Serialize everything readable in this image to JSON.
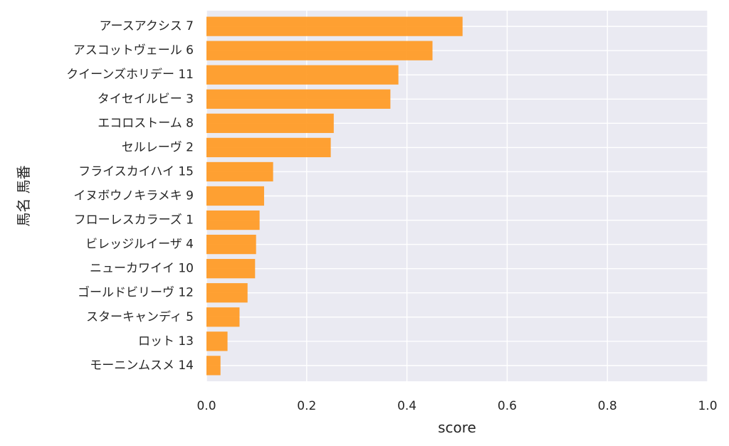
{
  "chart_data": {
    "type": "bar",
    "orientation": "horizontal",
    "xlabel": "score",
    "ylabel": "馬名 馬番",
    "xlim": [
      0.0,
      1.0
    ],
    "xticks": [
      "0.0",
      "0.2",
      "0.4",
      "0.6",
      "0.8",
      "1.0"
    ],
    "grid": true,
    "bar_color": "#ff9922",
    "background_color": "#eaeaf2",
    "categories": [
      "アースアクシス 7",
      "アスコットヴェール 6",
      "クイーンズホリデー 11",
      "タイセイルビー 3",
      "エコロストーム 8",
      "セルレーヴ 2",
      "フライスカイハイ 15",
      "イヌボウノキラメキ 9",
      "フローレスカラーズ 1",
      "ビレッジルイーザ 4",
      "ニューカワイイ 10",
      "ゴールドビリーヴ 12",
      "スターキャンディ 5",
      "ロット 13",
      "モーニンムスメ 14"
    ],
    "values": [
      0.511,
      0.451,
      0.383,
      0.367,
      0.254,
      0.248,
      0.133,
      0.115,
      0.106,
      0.099,
      0.097,
      0.082,
      0.066,
      0.042,
      0.028
    ]
  }
}
